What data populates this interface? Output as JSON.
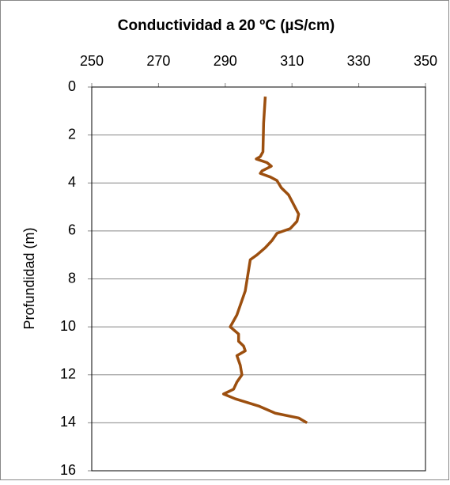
{
  "chart_data": {
    "type": "line",
    "title": "Conductividad  a  20 ºC (µS/cm)",
    "y_label": "Profundidad (m)",
    "x": [
      302,
      301.5,
      301.3,
      300.5,
      299.3,
      302.5,
      303.8,
      301,
      300.5,
      303.5,
      305.5,
      306.8,
      309,
      310.5,
      312,
      311.5,
      309.5,
      305.5,
      304,
      302,
      299.5,
      297.5,
      296,
      293.5,
      291.5,
      294,
      294,
      295.5,
      296,
      293.5,
      294.5,
      295,
      293.5,
      292.5,
      289.5,
      293,
      300,
      305,
      312,
      314.5
    ],
    "values": [
      0.4,
      1.5,
      2.7,
      2.9,
      3.0,
      3.15,
      3.3,
      3.5,
      3.6,
      3.75,
      3.9,
      4.2,
      4.5,
      4.9,
      5.3,
      5.6,
      5.9,
      6.1,
      6.4,
      6.7,
      7.0,
      7.2,
      8.5,
      9.5,
      10.0,
      10.3,
      10.6,
      10.8,
      11.0,
      11.2,
      11.6,
      12.0,
      12.3,
      12.6,
      12.8,
      13.0,
      13.3,
      13.6,
      13.8,
      14.0
    ],
    "color": "#9c4f0f",
    "xlim": [
      250,
      350
    ],
    "xticks": [
      250,
      270,
      290,
      310,
      330,
      350
    ],
    "ylim": [
      0,
      16
    ],
    "yticks": [
      0,
      2,
      4,
      6,
      8,
      10,
      12,
      14,
      16
    ],
    "y_inverted": true,
    "grid": true
  }
}
